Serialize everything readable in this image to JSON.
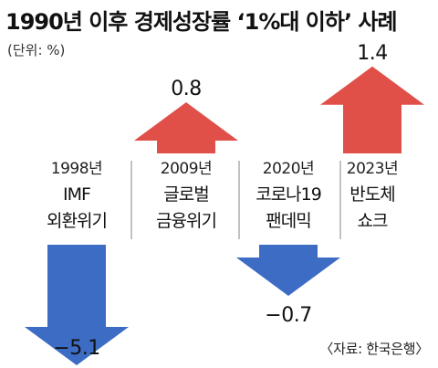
{
  "title": "1990년 이후 경제성장률 ‘1%대 이하’ 사례",
  "unit_note": "(단위: %)",
  "source_note": "〈자료: 한국은행〉",
  "colors": {
    "positive": "#e05049",
    "negative": "#3d6cc4",
    "divider": "#9a9a9a"
  },
  "chart_data": {
    "type": "bar",
    "title": "1990년 이후 경제성장률 ‘1%대 이하’ 사례",
    "unit": "(단위: %)",
    "categories": [
      {
        "year": "1998년",
        "lines": [
          "IMF",
          "외환위기"
        ]
      },
      {
        "year": "2009년",
        "lines": [
          "글로벌",
          "금융위기"
        ]
      },
      {
        "year": "2020년",
        "lines": [
          "코로나19",
          "팬데믹"
        ]
      },
      {
        "year": "2023년",
        "lines": [
          "반도체",
          "쇼크"
        ]
      }
    ],
    "values": [
      -5.1,
      0.8,
      -0.7,
      1.4
    ],
    "value_labels": [
      "−5.1",
      "0.8",
      "−0.7",
      "1.4"
    ],
    "source": "〈자료: 한국은행〉"
  }
}
